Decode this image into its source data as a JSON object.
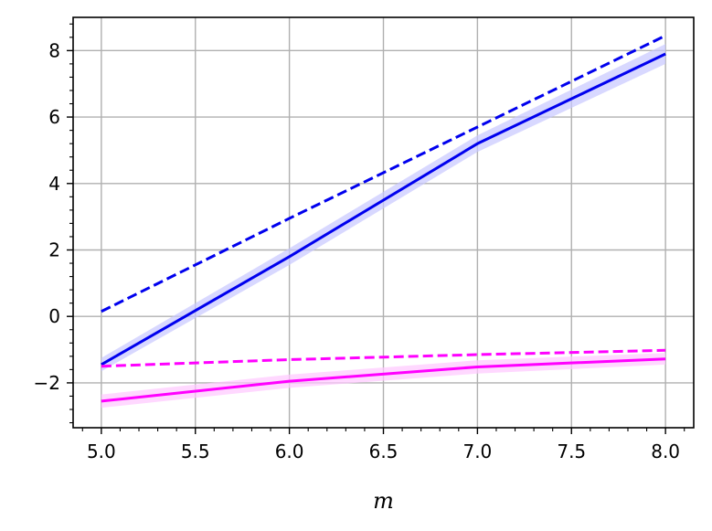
{
  "chart_data": {
    "type": "line",
    "title": "",
    "xlabel": "m",
    "ylabel": "",
    "xlim": [
      4.85,
      8.15
    ],
    "ylim": [
      -3.35,
      9.0
    ],
    "grid": true,
    "x_ticks": [
      5.0,
      5.5,
      6.0,
      6.5,
      7.0,
      7.5,
      8.0
    ],
    "x_tick_labels": [
      "5.0",
      "5.5",
      "6.0",
      "6.5",
      "7.0",
      "7.5",
      "8.0"
    ],
    "y_ticks": [
      -2,
      0,
      2,
      4,
      6,
      8
    ],
    "y_tick_labels": [
      "−2",
      "0",
      "2",
      "4",
      "6",
      "8"
    ],
    "series": [
      {
        "color": "#0000ee",
        "style": "dashed",
        "x": [
          5,
          6,
          7,
          8
        ],
        "y": [
          0.15,
          2.95,
          5.7,
          8.45
        ]
      },
      {
        "color": "#0000ee",
        "style": "solid",
        "band_color": "#c8c8ff",
        "x": [
          5,
          6,
          7,
          8
        ],
        "y": [
          -1.45,
          1.8,
          5.2,
          7.9
        ],
        "band_low": [
          -1.65,
          1.55,
          4.95,
          7.6
        ],
        "band_high": [
          -1.25,
          2.05,
          5.45,
          8.2
        ]
      },
      {
        "color": "#ff00ff",
        "style": "dashed",
        "x": [
          5,
          6,
          7,
          8
        ],
        "y": [
          -1.5,
          -1.3,
          -1.15,
          -1.02
        ]
      },
      {
        "color": "#ff00ff",
        "style": "solid",
        "band_color": "#ffc8ff",
        "x": [
          5,
          6,
          7,
          8
        ],
        "y": [
          -2.55,
          -1.95,
          -1.52,
          -1.28
        ],
        "band_low": [
          -2.75,
          -2.15,
          -1.72,
          -1.45
        ],
        "band_high": [
          -2.35,
          -1.75,
          -1.32,
          -1.1
        ]
      }
    ]
  }
}
